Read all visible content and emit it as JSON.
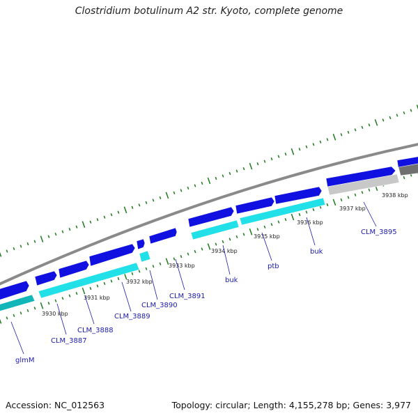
{
  "title": "Clostridium botulinum A2 str. Kyoto, complete genome",
  "footer": {
    "accession": "Accession: NC_012563",
    "summary": "Topology: circular; Length: 4,155,278 bp; Genes: 3,977"
  },
  "kbp_labels": [
    "3930 kbp",
    "3931 kbp",
    "3932 kbp",
    "3933 kbp",
    "3934 kbp",
    "3935 kbp",
    "3936 kbp",
    "3937 kbp",
    "3938 kbp"
  ],
  "gene_labels": [
    "glmM",
    "CLM_3887",
    "CLM_3888",
    "CLM_3889",
    "CLM_3890",
    "CLM_3891",
    "buk",
    "ptb",
    "buk",
    "CLM_3895"
  ],
  "colors": {
    "backbone": "#8a8a8a",
    "forward_gene": "#1010e0",
    "forward_cds": "#22e0e8",
    "reverse_gene": "#bdbdbd",
    "tick": "#1d7a1d",
    "label": "#1a1aaa"
  }
}
